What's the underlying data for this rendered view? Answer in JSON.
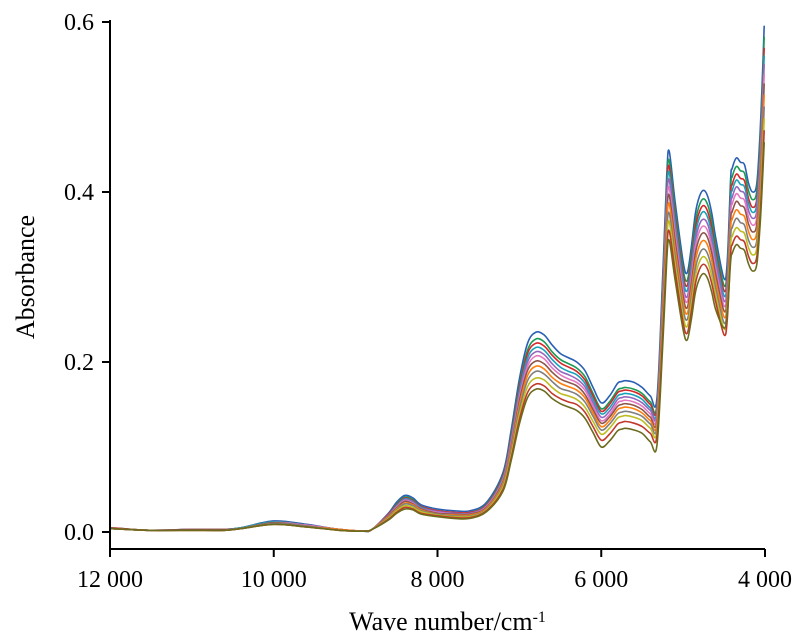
{
  "chart_data": {
    "type": "line",
    "title": "",
    "xlabel": "Wave number/cm",
    "xlabel_superscript": "-1",
    "ylabel": "Absorbance",
    "xlim": [
      12000,
      4000
    ],
    "ylim": [
      0,
      0.6
    ],
    "x_reversed": true,
    "x_ticks": [
      12000,
      10000,
      8000,
      6000,
      4000
    ],
    "x_tick_labels": [
      "12 000",
      "10 000",
      "8 000",
      "6 000",
      "4 000"
    ],
    "y_ticks": [
      0.0,
      0.2,
      0.4,
      0.6
    ],
    "y_tick_labels": [
      "0.0",
      "0.2",
      "0.4",
      "0.6"
    ],
    "grid": false,
    "legend": "none",
    "x": [
      12000,
      11500,
      11000,
      10600,
      10400,
      10000,
      9600,
      9200,
      8900,
      8800,
      8600,
      8500,
      8400,
      8300,
      8200,
      8000,
      7800,
      7600,
      7400,
      7200,
      7100,
      7000,
      6900,
      6800,
      6700,
      6600,
      6500,
      6400,
      6300,
      6200,
      6100,
      6000,
      5900,
      5800,
      5750,
      5700,
      5600,
      5500,
      5400,
      5320,
      5250,
      5200,
      5170,
      5100,
      5000,
      4950,
      4900,
      4850,
      4800,
      4750,
      4700,
      4650,
      4600,
      4500,
      4460,
      4420,
      4400,
      4350,
      4300,
      4250,
      4200,
      4150,
      4100,
      4060,
      4030,
      4010
    ],
    "series": [
      {
        "values": [
          0.005,
          0.002,
          0.003,
          0.003,
          0.005,
          0.013,
          0.009,
          0.003,
          0.001,
          0.003,
          0.022,
          0.035,
          0.043,
          0.04,
          0.032,
          0.027,
          0.025,
          0.025,
          0.035,
          0.07,
          0.12,
          0.18,
          0.222,
          0.235,
          0.232,
          0.22,
          0.21,
          0.205,
          0.2,
          0.19,
          0.17,
          0.152,
          0.16,
          0.175,
          0.177,
          0.178,
          0.176,
          0.17,
          0.16,
          0.157,
          0.3,
          0.42,
          0.448,
          0.39,
          0.318,
          0.305,
          0.335,
          0.375,
          0.395,
          0.402,
          0.395,
          0.375,
          0.345,
          0.298,
          0.32,
          0.415,
          0.428,
          0.44,
          0.435,
          0.432,
          0.41,
          0.4,
          0.41,
          0.47,
          0.54,
          0.595
        ],
        "color": "#2b5fb4"
      },
      {
        "values": [
          0.005,
          0.002,
          0.003,
          0.003,
          0.005,
          0.012,
          0.008,
          0.003,
          0.001,
          0.003,
          0.021,
          0.033,
          0.041,
          0.038,
          0.03,
          0.025,
          0.023,
          0.023,
          0.033,
          0.067,
          0.115,
          0.173,
          0.214,
          0.227,
          0.224,
          0.212,
          0.203,
          0.198,
          0.193,
          0.183,
          0.163,
          0.145,
          0.153,
          0.167,
          0.169,
          0.17,
          0.168,
          0.163,
          0.153,
          0.15,
          0.292,
          0.41,
          0.437,
          0.38,
          0.309,
          0.296,
          0.326,
          0.365,
          0.385,
          0.392,
          0.385,
          0.366,
          0.336,
          0.29,
          0.312,
          0.405,
          0.418,
          0.43,
          0.425,
          0.422,
          0.401,
          0.391,
          0.401,
          0.459,
          0.528,
          0.582
        ],
        "color": "#1a9a55"
      },
      {
        "values": [
          0.005,
          0.002,
          0.003,
          0.003,
          0.005,
          0.012,
          0.008,
          0.003,
          0.001,
          0.003,
          0.021,
          0.032,
          0.04,
          0.037,
          0.03,
          0.025,
          0.023,
          0.023,
          0.032,
          0.066,
          0.113,
          0.17,
          0.21,
          0.222,
          0.219,
          0.208,
          0.199,
          0.194,
          0.189,
          0.179,
          0.16,
          0.142,
          0.15,
          0.164,
          0.166,
          0.167,
          0.165,
          0.16,
          0.15,
          0.147,
          0.286,
          0.403,
          0.43,
          0.373,
          0.303,
          0.29,
          0.319,
          0.358,
          0.377,
          0.384,
          0.377,
          0.358,
          0.329,
          0.284,
          0.305,
          0.397,
          0.409,
          0.421,
          0.416,
          0.413,
          0.392,
          0.382,
          0.392,
          0.449,
          0.516,
          0.569
        ],
        "color": "#d62728"
      },
      {
        "values": [
          0.004,
          0.002,
          0.003,
          0.003,
          0.005,
          0.012,
          0.008,
          0.003,
          0.001,
          0.003,
          0.02,
          0.031,
          0.039,
          0.036,
          0.029,
          0.024,
          0.022,
          0.022,
          0.031,
          0.064,
          0.11,
          0.166,
          0.205,
          0.217,
          0.214,
          0.203,
          0.194,
          0.189,
          0.185,
          0.175,
          0.156,
          0.139,
          0.146,
          0.16,
          0.162,
          0.163,
          0.161,
          0.156,
          0.146,
          0.143,
          0.281,
          0.396,
          0.423,
          0.367,
          0.297,
          0.284,
          0.313,
          0.351,
          0.37,
          0.377,
          0.37,
          0.351,
          0.323,
          0.278,
          0.299,
          0.39,
          0.402,
          0.414,
          0.409,
          0.406,
          0.386,
          0.376,
          0.386,
          0.442,
          0.508,
          0.56
        ],
        "color": "#17a2b8"
      },
      {
        "values": [
          0.004,
          0.002,
          0.003,
          0.003,
          0.004,
          0.011,
          0.008,
          0.003,
          0.001,
          0.003,
          0.02,
          0.03,
          0.038,
          0.035,
          0.028,
          0.024,
          0.022,
          0.022,
          0.031,
          0.062,
          0.107,
          0.162,
          0.2,
          0.212,
          0.209,
          0.198,
          0.189,
          0.185,
          0.18,
          0.171,
          0.152,
          0.135,
          0.142,
          0.156,
          0.158,
          0.159,
          0.157,
          0.152,
          0.143,
          0.14,
          0.274,
          0.388,
          0.414,
          0.359,
          0.29,
          0.277,
          0.306,
          0.343,
          0.362,
          0.368,
          0.362,
          0.343,
          0.316,
          0.272,
          0.293,
          0.382,
          0.394,
          0.406,
          0.401,
          0.398,
          0.378,
          0.369,
          0.378,
          0.433,
          0.499,
          0.55
        ],
        "color": "#9467bd"
      },
      {
        "values": [
          0.004,
          0.002,
          0.003,
          0.003,
          0.004,
          0.011,
          0.008,
          0.003,
          0.001,
          0.003,
          0.019,
          0.029,
          0.037,
          0.034,
          0.027,
          0.023,
          0.021,
          0.021,
          0.03,
          0.061,
          0.104,
          0.158,
          0.195,
          0.207,
          0.204,
          0.193,
          0.185,
          0.18,
          0.176,
          0.167,
          0.148,
          0.131,
          0.138,
          0.152,
          0.154,
          0.155,
          0.153,
          0.148,
          0.139,
          0.136,
          0.267,
          0.38,
          0.405,
          0.352,
          0.284,
          0.271,
          0.299,
          0.336,
          0.354,
          0.36,
          0.354,
          0.336,
          0.309,
          0.266,
          0.287,
          0.374,
          0.386,
          0.398,
          0.393,
          0.39,
          0.37,
          0.361,
          0.37,
          0.424,
          0.488,
          0.538
        ],
        "color": "#e377c2"
      },
      {
        "values": [
          0.004,
          0.002,
          0.003,
          0.003,
          0.004,
          0.011,
          0.007,
          0.003,
          0.001,
          0.003,
          0.019,
          0.028,
          0.036,
          0.033,
          0.027,
          0.022,
          0.021,
          0.021,
          0.029,
          0.059,
          0.101,
          0.154,
          0.19,
          0.201,
          0.198,
          0.188,
          0.18,
          0.176,
          0.172,
          0.162,
          0.144,
          0.128,
          0.135,
          0.148,
          0.15,
          0.151,
          0.149,
          0.144,
          0.135,
          0.132,
          0.26,
          0.371,
          0.396,
          0.344,
          0.277,
          0.264,
          0.292,
          0.328,
          0.346,
          0.352,
          0.346,
          0.328,
          0.302,
          0.26,
          0.28,
          0.366,
          0.377,
          0.389,
          0.384,
          0.381,
          0.362,
          0.353,
          0.362,
          0.415,
          0.478,
          0.527
        ],
        "color": "#8c564b"
      },
      {
        "values": [
          0.004,
          0.002,
          0.002,
          0.002,
          0.004,
          0.01,
          0.007,
          0.003,
          0.001,
          0.003,
          0.018,
          0.027,
          0.034,
          0.032,
          0.026,
          0.021,
          0.02,
          0.02,
          0.028,
          0.057,
          0.098,
          0.149,
          0.184,
          0.195,
          0.192,
          0.182,
          0.175,
          0.171,
          0.167,
          0.158,
          0.14,
          0.124,
          0.131,
          0.144,
          0.146,
          0.147,
          0.145,
          0.14,
          0.131,
          0.128,
          0.252,
          0.361,
          0.386,
          0.335,
          0.27,
          0.257,
          0.284,
          0.319,
          0.337,
          0.343,
          0.337,
          0.319,
          0.294,
          0.253,
          0.273,
          0.357,
          0.368,
          0.379,
          0.374,
          0.371,
          0.353,
          0.344,
          0.353,
          0.405,
          0.466,
          0.514
        ],
        "color": "#ff7f0e"
      },
      {
        "values": [
          0.004,
          0.002,
          0.002,
          0.002,
          0.004,
          0.01,
          0.007,
          0.002,
          0.001,
          0.003,
          0.017,
          0.026,
          0.033,
          0.031,
          0.025,
          0.021,
          0.019,
          0.019,
          0.027,
          0.055,
          0.095,
          0.144,
          0.178,
          0.189,
          0.186,
          0.177,
          0.169,
          0.166,
          0.162,
          0.153,
          0.136,
          0.12,
          0.127,
          0.139,
          0.141,
          0.142,
          0.14,
          0.136,
          0.127,
          0.124,
          0.245,
          0.351,
          0.375,
          0.326,
          0.262,
          0.25,
          0.276,
          0.31,
          0.327,
          0.333,
          0.327,
          0.31,
          0.286,
          0.246,
          0.266,
          0.347,
          0.358,
          0.369,
          0.364,
          0.361,
          0.343,
          0.335,
          0.343,
          0.394,
          0.453,
          0.5
        ],
        "color": "#7f7f7f"
      },
      {
        "values": [
          0.004,
          0.002,
          0.002,
          0.002,
          0.004,
          0.009,
          0.006,
          0.002,
          0.001,
          0.003,
          0.016,
          0.025,
          0.031,
          0.029,
          0.024,
          0.02,
          0.018,
          0.018,
          0.026,
          0.053,
          0.091,
          0.138,
          0.171,
          0.181,
          0.179,
          0.17,
          0.163,
          0.16,
          0.156,
          0.147,
          0.13,
          0.115,
          0.122,
          0.134,
          0.136,
          0.137,
          0.135,
          0.131,
          0.122,
          0.119,
          0.237,
          0.341,
          0.365,
          0.317,
          0.254,
          0.242,
          0.268,
          0.301,
          0.318,
          0.324,
          0.318,
          0.301,
          0.278,
          0.239,
          0.258,
          0.337,
          0.348,
          0.358,
          0.354,
          0.351,
          0.334,
          0.326,
          0.334,
          0.383,
          0.441,
          0.486
        ],
        "color": "#bcbd22"
      },
      {
        "values": [
          0.004,
          0.002,
          0.002,
          0.002,
          0.004,
          0.009,
          0.006,
          0.002,
          0.001,
          0.003,
          0.015,
          0.023,
          0.029,
          0.027,
          0.022,
          0.019,
          0.017,
          0.017,
          0.025,
          0.05,
          0.087,
          0.132,
          0.164,
          0.174,
          0.172,
          0.163,
          0.157,
          0.153,
          0.15,
          0.141,
          0.124,
          0.108,
          0.115,
          0.127,
          0.129,
          0.13,
          0.128,
          0.124,
          0.116,
          0.113,
          0.229,
          0.331,
          0.354,
          0.308,
          0.246,
          0.234,
          0.259,
          0.292,
          0.309,
          0.315,
          0.309,
          0.292,
          0.27,
          0.232,
          0.251,
          0.327,
          0.338,
          0.348,
          0.344,
          0.341,
          0.324,
          0.316,
          0.324,
          0.372,
          0.428,
          0.472
        ],
        "color": "#c0392b"
      },
      {
        "values": [
          0.004,
          0.002,
          0.002,
          0.002,
          0.004,
          0.009,
          0.006,
          0.002,
          0.001,
          0.003,
          0.014,
          0.022,
          0.027,
          0.026,
          0.021,
          0.018,
          0.016,
          0.016,
          0.024,
          0.048,
          0.084,
          0.127,
          0.158,
          0.168,
          0.166,
          0.157,
          0.151,
          0.147,
          0.143,
          0.134,
          0.117,
          0.1,
          0.107,
          0.119,
          0.121,
          0.122,
          0.12,
          0.116,
          0.106,
          0.102,
          0.218,
          0.32,
          0.343,
          0.298,
          0.238,
          0.226,
          0.25,
          0.282,
          0.298,
          0.304,
          0.298,
          0.282,
          0.261,
          0.24,
          0.258,
          0.318,
          0.328,
          0.338,
          0.334,
          0.331,
          0.315,
          0.307,
          0.315,
          0.361,
          0.415,
          0.458
        ],
        "color": "#6b6b1e"
      }
    ]
  }
}
